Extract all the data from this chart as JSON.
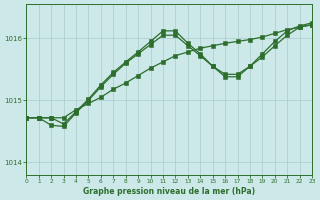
{
  "title": "Graphe pression niveau de la mer (hPa)",
  "background_color": "#cce8e8",
  "grid_color": "#aacccc",
  "line_color": "#2d6e2d",
  "xlim": [
    0,
    23
  ],
  "ylim": [
    1013.8,
    1016.55
  ],
  "xticks": [
    0,
    1,
    2,
    3,
    4,
    5,
    6,
    7,
    8,
    9,
    10,
    11,
    12,
    13,
    14,
    15,
    16,
    17,
    18,
    19,
    20,
    21,
    22,
    23
  ],
  "yticks": [
    1014,
    1015,
    1016
  ],
  "series1": {
    "x": [
      0,
      1,
      2,
      3,
      4,
      5,
      6,
      7,
      8,
      9,
      10,
      11,
      12,
      13,
      14,
      15,
      16,
      17,
      18,
      19,
      20,
      21,
      22,
      23
    ],
    "y": [
      1014.72,
      1014.72,
      1014.72,
      1014.72,
      1014.85,
      1014.95,
      1015.05,
      1015.18,
      1015.28,
      1015.4,
      1015.52,
      1015.62,
      1015.72,
      1015.78,
      1015.84,
      1015.88,
      1015.92,
      1015.95,
      1015.98,
      1016.02,
      1016.08,
      1016.14,
      1016.18,
      1016.22
    ]
  },
  "series2": {
    "x": [
      0,
      1,
      2,
      3,
      4,
      5,
      6,
      7,
      8,
      9,
      10,
      11,
      12,
      13,
      14,
      15,
      16,
      17,
      18,
      19,
      20,
      21,
      22,
      23
    ],
    "y": [
      1014.72,
      1014.72,
      1014.6,
      1014.58,
      1014.8,
      1015.0,
      1015.22,
      1015.42,
      1015.6,
      1015.75,
      1015.9,
      1016.05,
      1016.05,
      1015.88,
      1015.72,
      1015.55,
      1015.42,
      1015.42,
      1015.55,
      1015.7,
      1015.88,
      1016.05,
      1016.18,
      1016.22
    ]
  },
  "series3": {
    "x": [
      0,
      1,
      2,
      3,
      4,
      5,
      6,
      7,
      8,
      9,
      10,
      11,
      12,
      13,
      14,
      15,
      16,
      17,
      18,
      19,
      20,
      21,
      22,
      23
    ],
    "y": [
      1014.72,
      1014.72,
      1014.72,
      1014.62,
      1014.82,
      1015.02,
      1015.25,
      1015.45,
      1015.62,
      1015.78,
      1015.95,
      1016.12,
      1016.12,
      1015.92,
      1015.75,
      1015.55,
      1015.38,
      1015.38,
      1015.55,
      1015.75,
      1015.95,
      1016.12,
      1016.2,
      1016.25
    ]
  }
}
